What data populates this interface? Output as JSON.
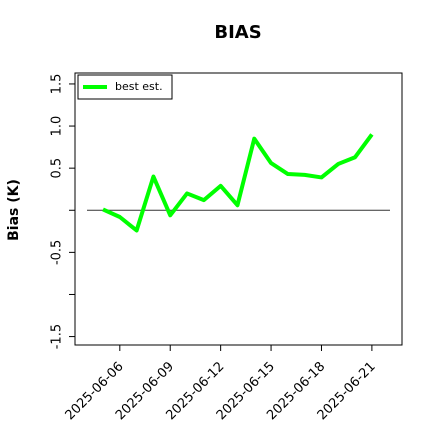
{
  "chart_data": {
    "type": "line",
    "title": "BIAS",
    "ylabel": "Bias (K)",
    "x": [
      "2025-06-05",
      "2025-06-06",
      "2025-06-07",
      "2025-06-08",
      "2025-06-09",
      "2025-06-10",
      "2025-06-11",
      "2025-06-12",
      "2025-06-13",
      "2025-06-14",
      "2025-06-15",
      "2025-06-16",
      "2025-06-17",
      "2025-06-18",
      "2025-06-19",
      "2025-06-20",
      "2025-06-21"
    ],
    "series": [
      {
        "name": "best est.",
        "color": "#00ff00",
        "values": [
          0.01,
          -0.08,
          -0.24,
          0.4,
          -0.06,
          0.2,
          0.12,
          0.29,
          0.06,
          0.85,
          0.56,
          0.43,
          0.42,
          0.39,
          0.55,
          0.63,
          0.9
        ]
      }
    ],
    "xlim": [
      "2025-06-03T08:00",
      "2025-06-22T19:00"
    ],
    "xticks": [
      "2025-06-06",
      "2025-06-09",
      "2025-06-12",
      "2025-06-15",
      "2025-06-18",
      "2025-06-21"
    ],
    "ylim": [
      -1.6,
      1.63
    ],
    "yticks": [
      {
        "value": -1.5,
        "label": "-1.5"
      },
      {
        "value": -1,
        "label": null
      },
      {
        "value": -0.5,
        "label": "-0.5"
      },
      {
        "value": 0,
        "label": null
      },
      {
        "value": 0.5,
        "label": "0.5"
      },
      {
        "value": 1,
        "label": "1.0"
      },
      {
        "value": 1.5,
        "label": "1.5"
      }
    ],
    "hline": 0,
    "legend": "upper left",
    "grid": false
  }
}
